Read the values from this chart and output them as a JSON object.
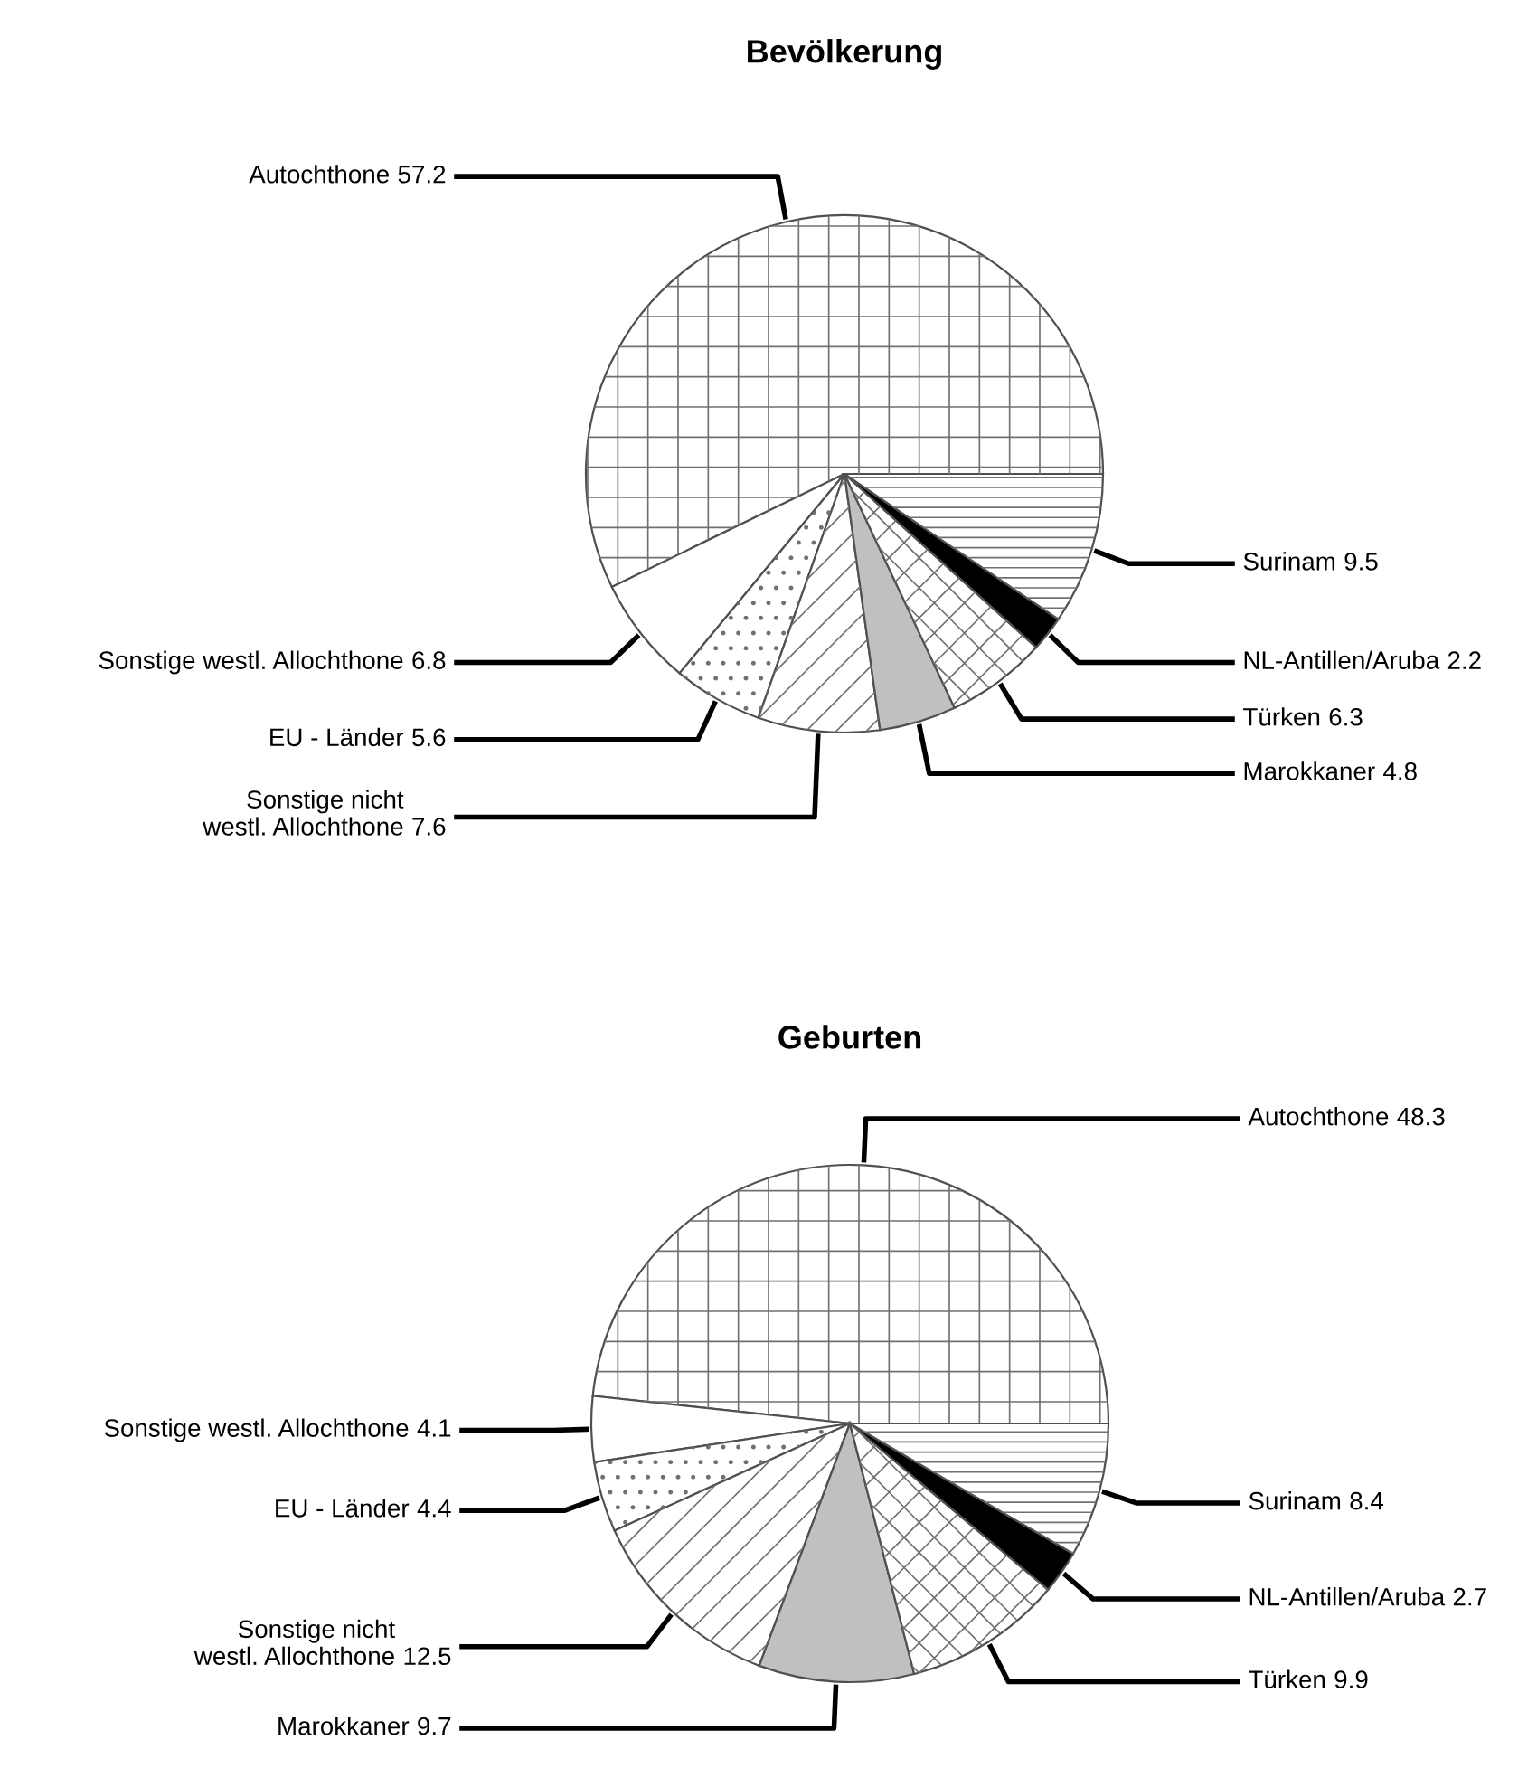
{
  "chart_data": [
    {
      "type": "pie",
      "title": "Bevölkerung",
      "data_labels": true,
      "categories": [
        "Autochthone",
        "Sonstige westl. Allochthone",
        "EU - Länder",
        "Sonstige nicht\nwestl. Allochthone",
        "Marokkaner",
        "Türken",
        "NL-Antillen/Aruba",
        "Surinam"
      ],
      "values": [
        57.2,
        6.8,
        5.6,
        7.6,
        4.8,
        6.3,
        2.2,
        9.5
      ],
      "colors": [
        "#ffffff",
        "#ffffff",
        "#ffffff",
        "#ffffff",
        "#c0c0c0",
        "#ffffff",
        "#000000",
        "#ffffff"
      ]
    },
    {
      "type": "pie",
      "title": "Geburten",
      "data_labels": true,
      "categories": [
        "Autochthone",
        "Sonstige westl. Allochthone",
        "EU - Länder",
        "Sonstige nicht\nwestl. Allochthone",
        "Marokkaner",
        "Türken",
        "NL-Antillen/Aruba",
        "Surinam"
      ],
      "values": [
        48.3,
        4.1,
        4.4,
        12.5,
        9.7,
        9.9,
        2.7,
        8.4
      ],
      "colors": [
        "#ffffff",
        "#ffffff",
        "#ffffff",
        "#ffffff",
        "#c0c0c0",
        "#ffffff",
        "#000000",
        "#ffffff"
      ]
    }
  ]
}
